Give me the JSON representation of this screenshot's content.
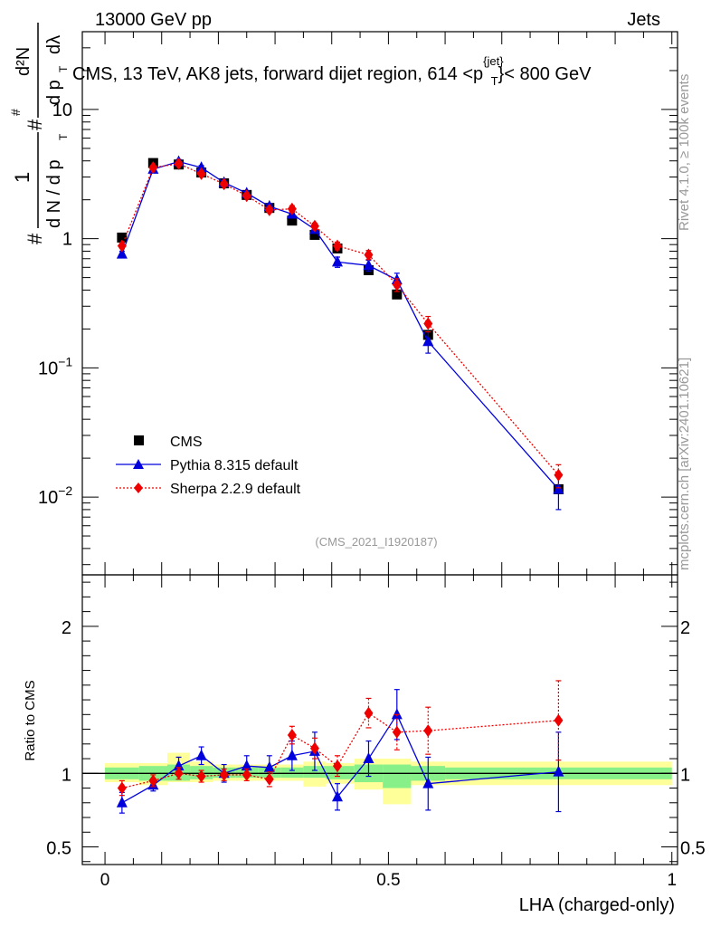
{
  "header": {
    "energy_label": "13000 GeV pp",
    "category_label": "Jets",
    "plot_title": "CMS, 13 TeV, AK8 jets, forward dijet region, 614 <p",
    "plot_title_sup": "{jet}",
    "plot_title_sub": "T",
    "plot_title_tail": "}< 800 GeV",
    "analysis_id": "(CMS_2021_I1920187)",
    "side_label_rivet": "Rivet 4.1.0, ≥ 100k events",
    "side_label_mcplots": "mcplots.cern.ch [arXiv:2401.10621]"
  },
  "colors": {
    "cms": "#000000",
    "pythia": "#0000dd",
    "sherpa": "#ee0000",
    "band_inner": "#88f088",
    "band_outer": "#ffff99"
  },
  "chart_data": [
    {
      "type": "scatter",
      "panel": "main",
      "ylabel": "1/N dN/dp_T dλ",
      "ylabel_parts": {
        "hash": "#",
        "one": "1",
        "dN": "d N / d p",
        "T": "T",
        "num": "d²N",
        "den": "d p",
        "lam": "dλ"
      },
      "yscale": "log",
      "ylim": [
        0.0025,
        40
      ],
      "xlim": [
        -0.04,
        1.01
      ],
      "ytick_labels": [
        {
          "value": 0.01,
          "base": "10",
          "exp": "−2"
        },
        {
          "value": 0.1,
          "base": "10",
          "exp": "−1"
        },
        {
          "value": 1,
          "base": "1",
          "exp": ""
        },
        {
          "value": 10,
          "base": "10",
          "exp": ""
        }
      ],
      "legend": [
        {
          "name": "CMS",
          "marker": "square"
        },
        {
          "name": "Pythia 8.315 default",
          "marker": "triangle"
        },
        {
          "name": "Sherpa 2.2.9 default",
          "marker": "diamond"
        }
      ],
      "legend_position": "lower-left",
      "series": [
        {
          "name": "CMS",
          "x": [
            0.03,
            0.085,
            0.13,
            0.17,
            0.21,
            0.25,
            0.29,
            0.33,
            0.37,
            0.41,
            0.465,
            0.515,
            0.57,
            0.8
          ],
          "y": [
            1.02,
            3.85,
            3.75,
            3.25,
            2.68,
            2.18,
            1.73,
            1.38,
            1.07,
            0.84,
            0.57,
            0.37,
            0.18,
            0.0115
          ]
        },
        {
          "name": "Pythia 8.315 default",
          "x": [
            0.03,
            0.085,
            0.13,
            0.17,
            0.21,
            0.25,
            0.29,
            0.33,
            0.37,
            0.41,
            0.465,
            0.515,
            0.57,
            0.8
          ],
          "y": [
            0.76,
            3.45,
            3.95,
            3.55,
            2.72,
            2.25,
            1.78,
            1.55,
            1.18,
            0.66,
            0.62,
            0.48,
            0.16,
            0.0115
          ],
          "err": [
            0.04,
            0.15,
            0.15,
            0.13,
            0.1,
            0.09,
            0.08,
            0.08,
            0.07,
            0.06,
            0.06,
            0.06,
            0.03,
            0.0035
          ]
        },
        {
          "name": "Sherpa 2.2.9 default",
          "x": [
            0.03,
            0.085,
            0.13,
            0.17,
            0.21,
            0.25,
            0.29,
            0.33,
            0.37,
            0.41,
            0.465,
            0.515,
            0.57,
            0.8
          ],
          "y": [
            0.88,
            3.55,
            3.8,
            3.18,
            2.65,
            2.15,
            1.67,
            1.7,
            1.25,
            0.88,
            0.75,
            0.44,
            0.22,
            0.0148
          ],
          "err": [
            0.04,
            0.15,
            0.15,
            0.12,
            0.1,
            0.09,
            0.08,
            0.1,
            0.07,
            0.06,
            0.06,
            0.05,
            0.03,
            0.003
          ]
        }
      ]
    },
    {
      "type": "scatter",
      "panel": "ratio",
      "xlabel": "LHA (charged-only)",
      "ylabel": "Ratio to CMS",
      "ylim": [
        0.38,
        2.35
      ],
      "xlim": [
        -0.04,
        1.01
      ],
      "xtick_labels": [
        {
          "value": 0,
          "label": "0"
        },
        {
          "value": 0.5,
          "label": "0.5"
        },
        {
          "value": 1,
          "label": "1"
        }
      ],
      "ytick_labels": [
        {
          "value": 0.5,
          "label": "0.5"
        },
        {
          "value": 1,
          "label": "1"
        },
        {
          "value": 2,
          "label": "2"
        }
      ],
      "reference_line": 1,
      "uncertainty_bands": [
        {
          "x0": 0.0,
          "x1": 0.06,
          "inner": [
            0.96,
            1.04
          ],
          "outer": [
            0.94,
            1.07
          ]
        },
        {
          "x0": 0.06,
          "x1": 0.11,
          "inner": [
            0.95,
            1.05
          ],
          "outer": [
            0.92,
            1.07
          ]
        },
        {
          "x0": 0.11,
          "x1": 0.15,
          "inner": [
            0.95,
            1.06
          ],
          "outer": [
            0.94,
            1.14
          ]
        },
        {
          "x0": 0.15,
          "x1": 0.19,
          "inner": [
            0.96,
            1.05
          ],
          "outer": [
            0.94,
            1.08
          ]
        },
        {
          "x0": 0.19,
          "x1": 0.23,
          "inner": [
            0.97,
            1.04
          ],
          "outer": [
            0.95,
            1.06
          ]
        },
        {
          "x0": 0.23,
          "x1": 0.27,
          "inner": [
            0.97,
            1.04
          ],
          "outer": [
            0.95,
            1.06
          ]
        },
        {
          "x0": 0.27,
          "x1": 0.31,
          "inner": [
            0.97,
            1.04
          ],
          "outer": [
            0.95,
            1.06
          ]
        },
        {
          "x0": 0.31,
          "x1": 0.35,
          "inner": [
            0.97,
            1.04
          ],
          "outer": [
            0.95,
            1.06
          ]
        },
        {
          "x0": 0.35,
          "x1": 0.39,
          "inner": [
            0.97,
            1.05
          ],
          "outer": [
            0.91,
            1.08
          ]
        },
        {
          "x0": 0.39,
          "x1": 0.44,
          "inner": [
            0.96,
            1.05
          ],
          "outer": [
            0.93,
            1.07
          ]
        },
        {
          "x0": 0.44,
          "x1": 0.49,
          "inner": [
            0.94,
            1.06
          ],
          "outer": [
            0.89,
            1.1
          ]
        },
        {
          "x0": 0.49,
          "x1": 0.54,
          "inner": [
            0.9,
            1.06
          ],
          "outer": [
            0.79,
            1.1
          ]
        },
        {
          "x0": 0.54,
          "x1": 0.6,
          "inner": [
            0.95,
            1.05
          ],
          "outer": [
            0.92,
            1.08
          ]
        },
        {
          "x0": 0.6,
          "x1": 1.0,
          "inner": [
            0.96,
            1.04
          ],
          "outer": [
            0.92,
            1.08
          ]
        }
      ],
      "series": [
        {
          "name": "Pythia 8.315 default",
          "x": [
            0.03,
            0.085,
            0.13,
            0.17,
            0.21,
            0.25,
            0.29,
            0.33,
            0.37,
            0.41,
            0.465,
            0.515,
            0.57,
            0.8
          ],
          "y": [
            0.8,
            0.92,
            1.05,
            1.12,
            1.0,
            1.05,
            1.04,
            1.12,
            1.15,
            0.84,
            1.1,
            1.4,
            0.93,
            1.01
          ],
          "err": [
            0.07,
            0.04,
            0.06,
            0.06,
            0.06,
            0.07,
            0.08,
            0.1,
            0.13,
            0.09,
            0.12,
            0.17,
            0.18,
            0.27
          ]
        },
        {
          "name": "Sherpa 2.2.9 default",
          "x": [
            0.03,
            0.085,
            0.13,
            0.17,
            0.21,
            0.25,
            0.29,
            0.33,
            0.37,
            0.41,
            0.465,
            0.515,
            0.57,
            0.8
          ],
          "y": [
            0.9,
            0.95,
            1.0,
            0.98,
            0.99,
            0.99,
            0.96,
            1.26,
            1.17,
            1.05,
            1.41,
            1.28,
            1.29,
            1.36
          ],
          "err": [
            0.05,
            0.04,
            0.04,
            0.04,
            0.04,
            0.04,
            0.05,
            0.06,
            0.07,
            0.07,
            0.1,
            0.12,
            0.16,
            0.27
          ]
        }
      ]
    }
  ]
}
